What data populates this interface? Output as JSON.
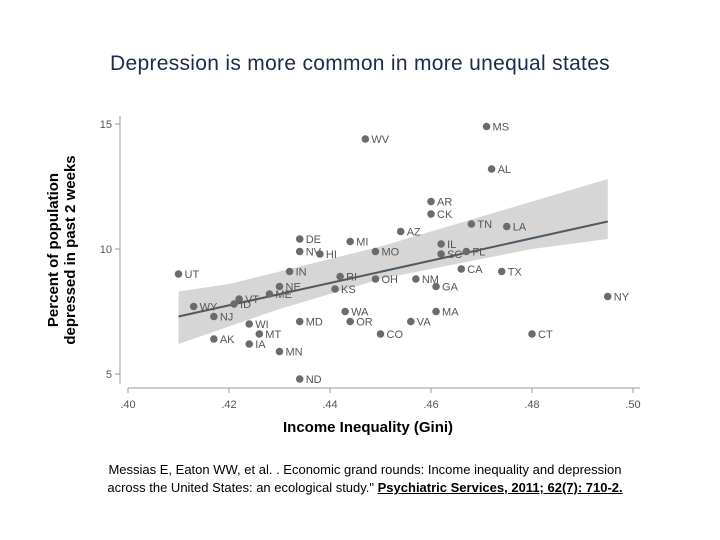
{
  "title": "Depression is more common in more unequal states",
  "citation": {
    "line1": "Messias E, Eaton WW, et al. .  Economic grand rounds:  Income inequality and depression",
    "line2_prefix": "across the United States: an ecological study.\" ",
    "line2_source": "Psychiatric Services, 2011; 62(7): 710-2."
  },
  "chart_data": {
    "type": "scatter",
    "xlabel": "Income Inequality (Gini)",
    "ylabel_line1": "Percent of population",
    "ylabel_line2": "depressed in past 2 weeks",
    "xlim": [
      0.4,
      0.5
    ],
    "ylim": [
      5,
      15
    ],
    "x_ticks": [
      ".40",
      ".42",
      ".44",
      ".46",
      ".48",
      ".50"
    ],
    "x_tick_values": [
      0.4,
      0.42,
      0.44,
      0.46,
      0.48,
      0.5
    ],
    "y_ticks": [
      "5",
      "10",
      "15"
    ],
    "y_tick_values": [
      5,
      10,
      15
    ],
    "colors": {
      "point": "#6b6b6b",
      "fit_line": "#505a62",
      "ci_band": "#d6d6d6",
      "label": "#555555",
      "axis": "#9a9a9a"
    },
    "points": [
      {
        "label": "MS",
        "x": 0.471,
        "y": 14.9
      },
      {
        "label": "WV",
        "x": 0.447,
        "y": 14.4
      },
      {
        "label": "AL",
        "x": 0.472,
        "y": 13.2
      },
      {
        "label": "AR",
        "x": 0.46,
        "y": 11.9
      },
      {
        "label": "CK",
        "x": 0.46,
        "y": 11.4
      },
      {
        "label": "TN",
        "x": 0.468,
        "y": 11.0
      },
      {
        "label": "LA",
        "x": 0.475,
        "y": 10.9
      },
      {
        "label": "AZ",
        "x": 0.454,
        "y": 10.7
      },
      {
        "label": "DE",
        "x": 0.434,
        "y": 10.4
      },
      {
        "label": "MI",
        "x": 0.444,
        "y": 10.3
      },
      {
        "label": "IL",
        "x": 0.462,
        "y": 10.2
      },
      {
        "label": "NV",
        "x": 0.434,
        "y": 9.9
      },
      {
        "label": "HI",
        "x": 0.438,
        "y": 9.8
      },
      {
        "label": "MO",
        "x": 0.449,
        "y": 9.9
      },
      {
        "label": "SC",
        "x": 0.462,
        "y": 9.8
      },
      {
        "label": "FL",
        "x": 0.467,
        "y": 9.9
      },
      {
        "label": "UT",
        "x": 0.41,
        "y": 9.0
      },
      {
        "label": "IN",
        "x": 0.432,
        "y": 9.1
      },
      {
        "label": "RI",
        "x": 0.442,
        "y": 8.9
      },
      {
        "label": "CA",
        "x": 0.466,
        "y": 9.2
      },
      {
        "label": "TX",
        "x": 0.474,
        "y": 9.1
      },
      {
        "label": "OH",
        "x": 0.449,
        "y": 8.8
      },
      {
        "label": "NM",
        "x": 0.457,
        "y": 8.8
      },
      {
        "label": "NE",
        "x": 0.43,
        "y": 8.5
      },
      {
        "label": "KS",
        "x": 0.441,
        "y": 8.4
      },
      {
        "label": "GA",
        "x": 0.461,
        "y": 8.5
      },
      {
        "label": "VT",
        "x": 0.422,
        "y": 8.0
      },
      {
        "label": "ME",
        "x": 0.428,
        "y": 8.2
      },
      {
        "label": "WY",
        "x": 0.413,
        "y": 7.7
      },
      {
        "label": "ID",
        "x": 0.421,
        "y": 7.8
      },
      {
        "label": "NY",
        "x": 0.495,
        "y": 8.1
      },
      {
        "label": "NJ",
        "x": 0.417,
        "y": 7.3
      },
      {
        "label": "WA",
        "x": 0.443,
        "y": 7.5
      },
      {
        "label": "MA",
        "x": 0.461,
        "y": 7.5
      },
      {
        "label": "MD",
        "x": 0.434,
        "y": 7.1
      },
      {
        "label": "OR",
        "x": 0.444,
        "y": 7.1
      },
      {
        "label": "VA",
        "x": 0.456,
        "y": 7.1
      },
      {
        "label": "WI",
        "x": 0.424,
        "y": 7.0
      },
      {
        "label": "MT",
        "x": 0.426,
        "y": 6.6
      },
      {
        "label": "CO",
        "x": 0.45,
        "y": 6.6
      },
      {
        "label": "CT",
        "x": 0.48,
        "y": 6.6
      },
      {
        "label": "AK",
        "x": 0.417,
        "y": 6.4
      },
      {
        "label": "IA",
        "x": 0.424,
        "y": 6.2
      },
      {
        "label": "MN",
        "x": 0.43,
        "y": 5.9
      },
      {
        "label": "ND",
        "x": 0.434,
        "y": 4.8
      }
    ],
    "fit_line": {
      "x": [
        0.41,
        0.495
      ],
      "y": [
        7.3,
        11.1
      ]
    },
    "ci_band": {
      "x": [
        0.41,
        0.42,
        0.43,
        0.44,
        0.45,
        0.46,
        0.47,
        0.48,
        0.495
      ],
      "upper": [
        8.3,
        8.6,
        9.1,
        9.6,
        10.1,
        10.7,
        11.3,
        11.9,
        12.8
      ],
      "lower": [
        6.2,
        6.9,
        7.6,
        8.2,
        8.8,
        9.2,
        9.6,
        10.0,
        10.4
      ]
    },
    "grid": false,
    "legend": "none"
  }
}
